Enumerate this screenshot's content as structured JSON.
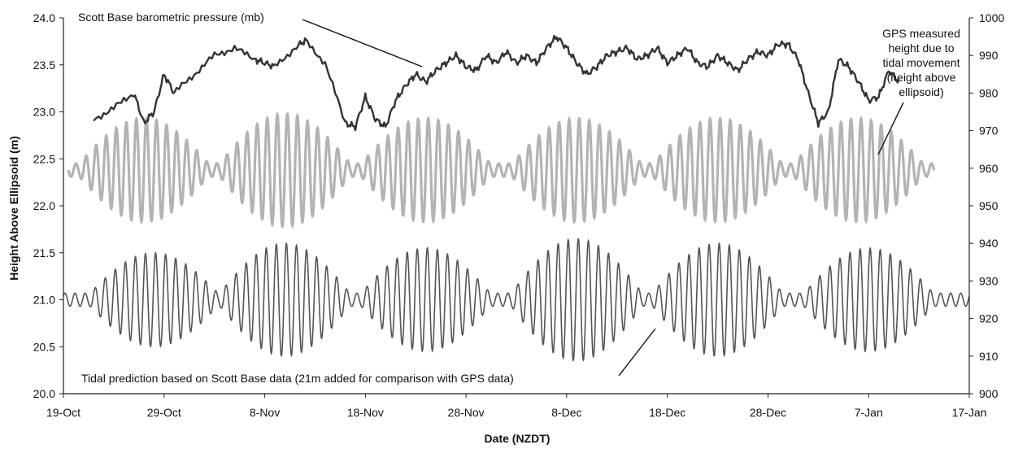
{
  "chart_data": {
    "type": "line",
    "xlabel": "Date (NZDT)",
    "ylabel": "Height Above Ellipsoid (m)",
    "ylim": [
      20.0,
      24.0
    ],
    "y2lim": [
      900,
      1000
    ],
    "yticks": [
      "20.0",
      "20.5",
      "21.0",
      "21.5",
      "22.0",
      "22.5",
      "23.0",
      "23.5",
      "24.0"
    ],
    "y2ticks": [
      "900",
      "910",
      "920",
      "930",
      "940",
      "950",
      "960",
      "970",
      "980",
      "990",
      "1000"
    ],
    "x_start": "2008-10-19",
    "x_end": "2009-01-17",
    "xticks": [
      {
        "label": "19-Oct",
        "day": 0
      },
      {
        "label": "29-Oct",
        "day": 10
      },
      {
        "label": "8-Nov",
        "day": 20
      },
      {
        "label": "18-Nov",
        "day": 30
      },
      {
        "label": "28-Nov",
        "day": 40
      },
      {
        "label": "8-Dec",
        "day": 50
      },
      {
        "label": "18-Dec",
        "day": 60
      },
      {
        "label": "28-Dec",
        "day": 70
      },
      {
        "label": "7-Jan",
        "day": 80
      },
      {
        "label": "17-Jan",
        "day": 90
      }
    ],
    "annotations": {
      "pressure": "Scott Base barometric pressure (mb)",
      "gps": [
        "GPS measured",
        "height due to",
        "tidal movement",
        "(height above",
        "ellipsoid)"
      ],
      "tidal": "Tidal prediction based on Scott Base data (21m added for comparison with GPS data)"
    },
    "series": [
      {
        "axis": "right",
        "color": "#333333",
        "points": [
          [
            3,
            973
          ],
          [
            5,
            976
          ],
          [
            7,
            980
          ],
          [
            8,
            972
          ],
          [
            9,
            975
          ],
          [
            10,
            985
          ],
          [
            11,
            980
          ],
          [
            13,
            985
          ],
          [
            15,
            990
          ],
          [
            17,
            992
          ],
          [
            19,
            989
          ],
          [
            20,
            988
          ],
          [
            21,
            987
          ],
          [
            23,
            992
          ],
          [
            24,
            994
          ],
          [
            26,
            988
          ],
          [
            28,
            972
          ],
          [
            29,
            971
          ],
          [
            30,
            979
          ],
          [
            31,
            973
          ],
          [
            32,
            971
          ],
          [
            33,
            978
          ],
          [
            34,
            982
          ],
          [
            35,
            985
          ],
          [
            36,
            983
          ],
          [
            37,
            986
          ],
          [
            38,
            988
          ],
          [
            39,
            990
          ],
          [
            40,
            987
          ],
          [
            41,
            986
          ],
          [
            42,
            990
          ],
          [
            43,
            988
          ],
          [
            44,
            991
          ],
          [
            45,
            988
          ],
          [
            46,
            990
          ],
          [
            47,
            988
          ],
          [
            48,
            992
          ],
          [
            49,
            995
          ],
          [
            50,
            992
          ],
          [
            51,
            988
          ],
          [
            52,
            985
          ],
          [
            53,
            987
          ],
          [
            54,
            990
          ],
          [
            55,
            991
          ],
          [
            56,
            992
          ],
          [
            57,
            989
          ],
          [
            58,
            990
          ],
          [
            59,
            992
          ],
          [
            60,
            988
          ],
          [
            61,
            990
          ],
          [
            62,
            992
          ],
          [
            63,
            988
          ],
          [
            64,
            987
          ],
          [
            65,
            990
          ],
          [
            66,
            988
          ],
          [
            67,
            986
          ],
          [
            68,
            989
          ],
          [
            69,
            991
          ],
          [
            70,
            990
          ],
          [
            71,
            993
          ],
          [
            72,
            993
          ],
          [
            73,
            989
          ],
          [
            74,
            980
          ],
          [
            75,
            972
          ],
          [
            76,
            975
          ],
          [
            77,
            989
          ],
          [
            78,
            987
          ],
          [
            79,
            983
          ],
          [
            80,
            978
          ],
          [
            81,
            979
          ],
          [
            82,
            986
          ],
          [
            83,
            983
          ]
        ]
      },
      {
        "axis": "left",
        "color": "#b3b3b3",
        "spring_tides_day": [
          8,
          22,
          36,
          51,
          65,
          79
        ],
        "spring_tide_amplitudes_m": [
          0.55,
          0.6,
          0.55,
          0.55,
          0.55,
          0.55
        ],
        "period_days": 1.0,
        "x_range": [
          0.5,
          86.5
        ],
        "mean_m": 22.38
      },
      {
        "axis": "left",
        "color": "#555555",
        "spring_tides_day": [
          9,
          22,
          36,
          51,
          65,
          80
        ],
        "spring_tide_amplitudes_m": [
          0.5,
          0.6,
          0.55,
          0.65,
          0.6,
          0.55
        ],
        "period_days": 1.0,
        "x_range": [
          0,
          90
        ],
        "mean_m": 21.0
      }
    ]
  }
}
